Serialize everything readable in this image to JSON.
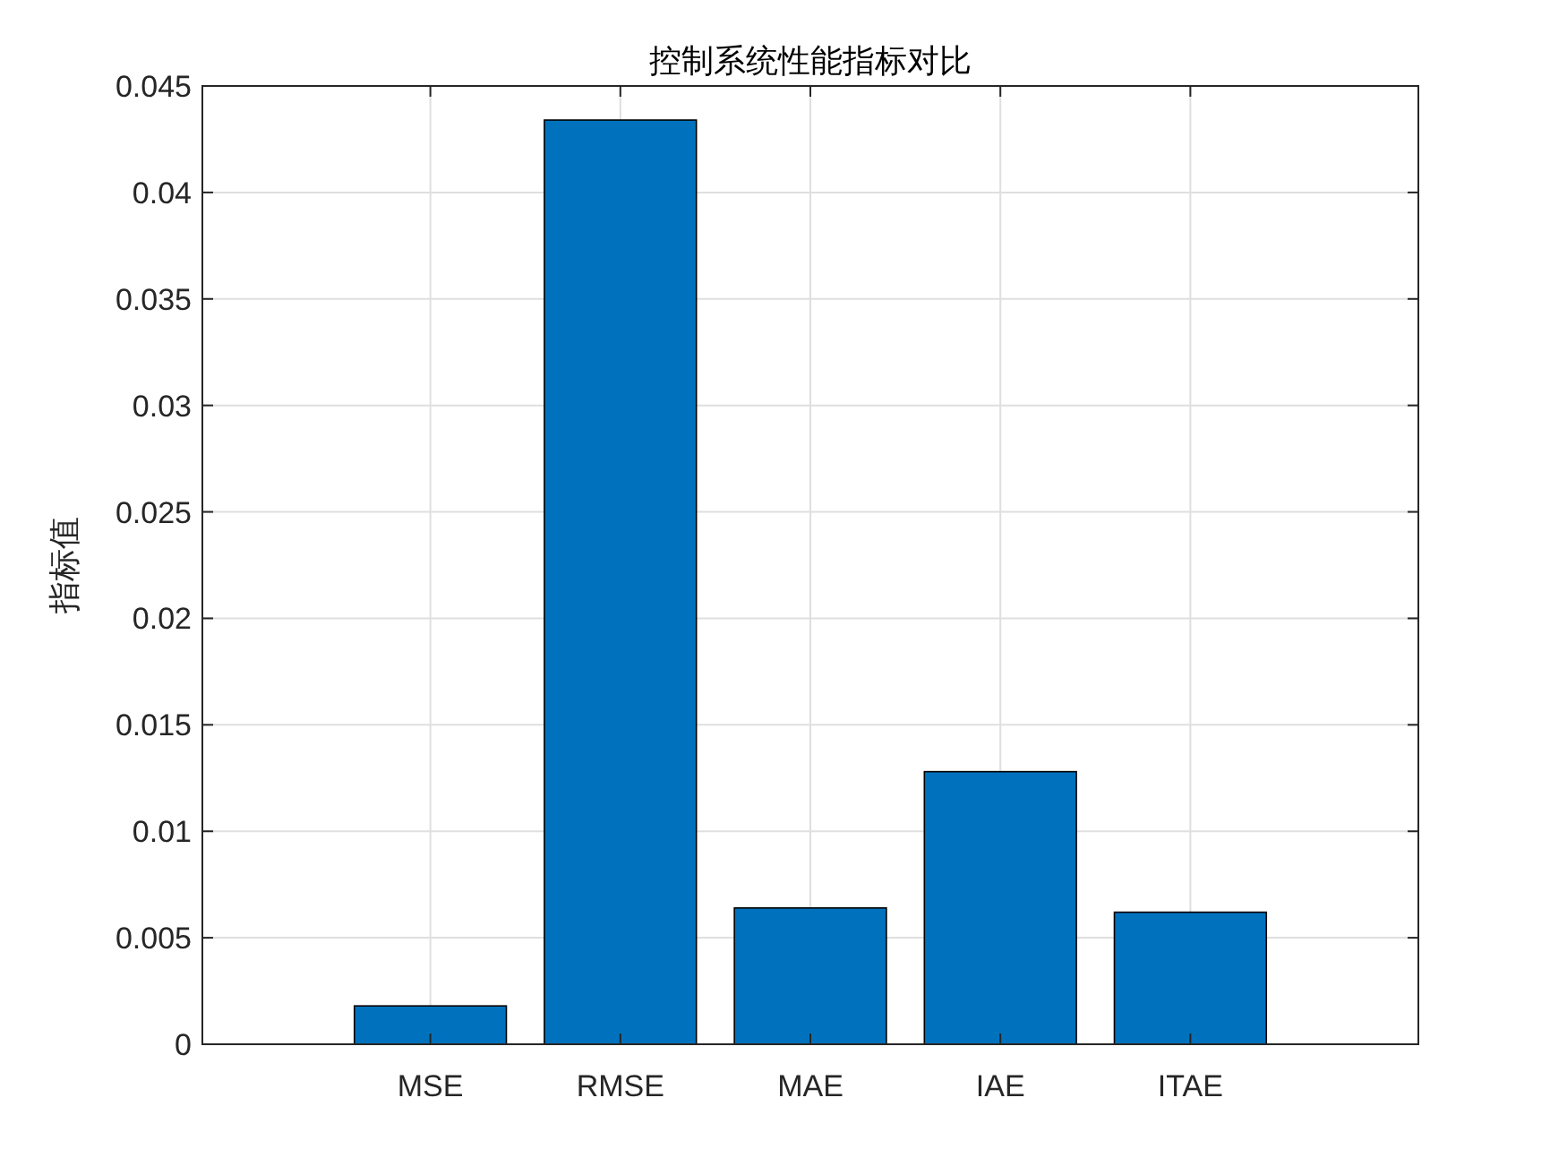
{
  "chart_data": {
    "type": "bar",
    "title": "控制系统性能指标对比",
    "ylabel": "指标值",
    "categories": [
      "MSE",
      "RMSE",
      "MAE",
      "IAE",
      "ITAE"
    ],
    "values": [
      0.0018,
      0.0434,
      0.0064,
      0.0128,
      0.0062
    ],
    "color": "#0072bd",
    "ylim": [
      0,
      0.045
    ],
    "yticks": [
      0,
      0.005,
      0.01,
      0.015,
      0.02,
      0.025,
      0.03,
      0.035,
      0.04,
      0.045
    ],
    "grid": true
  }
}
